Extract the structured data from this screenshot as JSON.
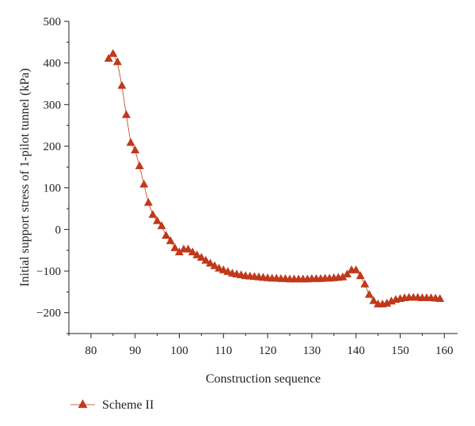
{
  "chart_data": {
    "type": "scatter",
    "title": "",
    "xlabel": "Construction sequence",
    "ylabel": "Initial support stress of 1-pilot tunnel (kPa)",
    "xlim": [
      75,
      163
    ],
    "ylim": [
      -250,
      500
    ],
    "xticks": [
      80,
      90,
      100,
      110,
      120,
      130,
      140,
      150,
      160
    ],
    "yticks": [
      -200,
      -100,
      0,
      100,
      200,
      300,
      400,
      500
    ],
    "grid": false,
    "legend_position": "bottom-left",
    "series": [
      {
        "name": "Scheme II",
        "color": "#c0391b",
        "marker": "triangle",
        "line_style": "thin-connecting-line",
        "x": [
          84,
          85,
          86,
          87,
          88,
          89,
          90,
          91,
          92,
          93,
          94,
          95,
          96,
          97,
          98,
          99,
          100,
          101,
          102,
          103,
          104,
          105,
          106,
          107,
          108,
          109,
          110,
          111,
          112,
          113,
          114,
          115,
          116,
          117,
          118,
          119,
          120,
          121,
          122,
          123,
          124,
          125,
          126,
          127,
          128,
          129,
          130,
          131,
          132,
          133,
          134,
          135,
          136,
          137,
          138,
          139,
          140,
          141,
          142,
          143,
          144,
          145,
          146,
          147,
          148,
          149,
          150,
          151,
          152,
          153,
          154,
          155,
          156,
          157,
          158,
          159
        ],
        "values": [
          410,
          422,
          402,
          345,
          275,
          208,
          190,
          152,
          108,
          64,
          35,
          20,
          8,
          -15,
          -28,
          -45,
          -55,
          -48,
          -48,
          -55,
          -62,
          -68,
          -75,
          -82,
          -88,
          -94,
          -98,
          -102,
          -106,
          -108,
          -110,
          -112,
          -113,
          -114,
          -115,
          -116,
          -117,
          -118,
          -118,
          -119,
          -119,
          -120,
          -120,
          -120,
          -120,
          -120,
          -119,
          -119,
          -119,
          -118,
          -118,
          -117,
          -116,
          -115,
          -108,
          -98,
          -98,
          -112,
          -132,
          -157,
          -172,
          -180,
          -180,
          -178,
          -173,
          -169,
          -167,
          -165,
          -164,
          -164,
          -164,
          -165,
          -165,
          -165,
          -166,
          -167
        ]
      }
    ]
  }
}
